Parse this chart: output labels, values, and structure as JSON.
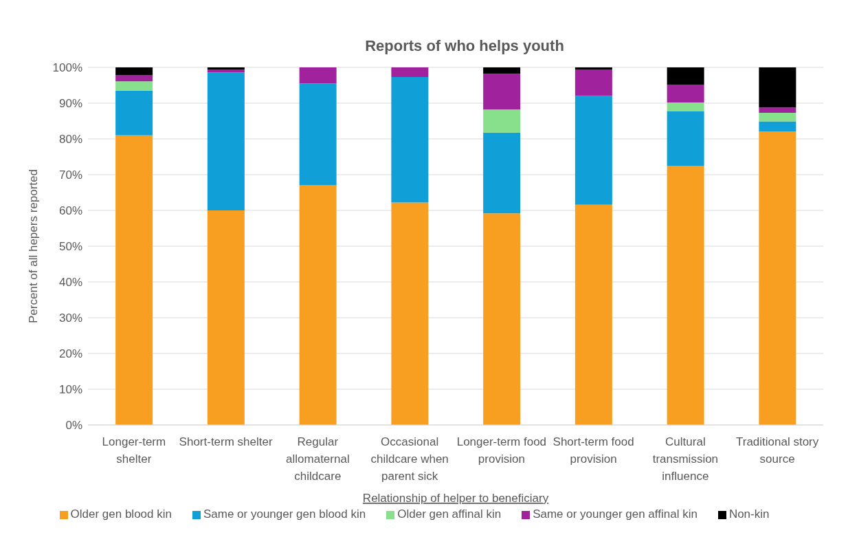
{
  "chart_data": {
    "type": "bar",
    "stacked": true,
    "title": "Reports of who helps youth",
    "xlabel": "Relationship of helper to beneficiary",
    "ylabel": "Percent of all hepers reported",
    "categories": [
      "Longer-term shelter",
      "Short-term shelter",
      "Regular allomaternal childcare",
      "Occasional childcare when parent sick",
      "Longer-term food provision",
      "Short-term food provision",
      "Cultural transmission influence",
      "Traditional story source"
    ],
    "series": [
      {
        "name": "Older gen blood kin",
        "color": "#f89f22",
        "values": [
          81,
          60,
          67,
          62.2,
          59.2,
          61.6,
          72.4,
          82
        ]
      },
      {
        "name": "Same or younger gen blood kin",
        "color": "#119fd8",
        "values": [
          12.5,
          38.6,
          28.5,
          35.1,
          22.6,
          30.4,
          15.4,
          2.9
        ]
      },
      {
        "name": "Older gen affinal kin",
        "color": "#88e08c",
        "values": [
          2.6,
          0,
          0,
          0,
          6.4,
          0,
          2.4,
          2.4
        ]
      },
      {
        "name": "Same or younger gen affinal kin",
        "color": "#a0229c",
        "values": [
          1.7,
          0.8,
          4.5,
          2.7,
          10,
          7.4,
          4.9,
          1.5
        ]
      },
      {
        "name": "Non-kin",
        "color": "#000000",
        "values": [
          2.2,
          0.6,
          0,
          0,
          1.8,
          0.6,
          4.9,
          11.2
        ]
      }
    ],
    "ylim": [
      0,
      100
    ],
    "yticks": [
      {
        "value": 0,
        "label": "0%"
      },
      {
        "value": 10,
        "label": "10%"
      },
      {
        "value": 20,
        "label": "20%"
      },
      {
        "value": 30,
        "label": "30%"
      },
      {
        "value": 40,
        "label": "40%"
      },
      {
        "value": 50,
        "label": "50%"
      },
      {
        "value": 60,
        "label": "60%"
      },
      {
        "value": 70,
        "label": "70%"
      },
      {
        "value": 80,
        "label": "80%"
      },
      {
        "value": 90,
        "label": "90%"
      },
      {
        "value": 100,
        "label": "100%"
      }
    ],
    "grid": "y",
    "legend": "bottom"
  }
}
